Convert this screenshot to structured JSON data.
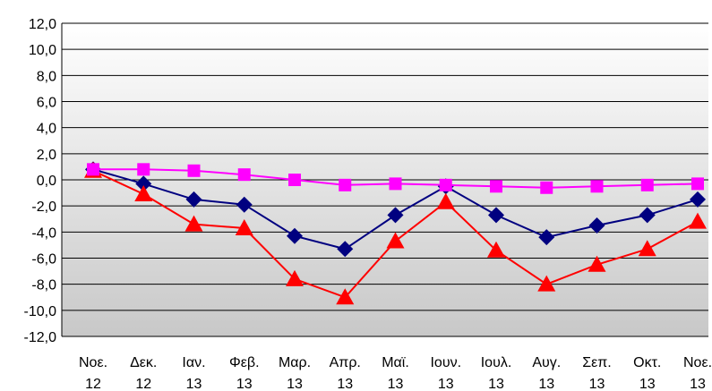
{
  "chart_data": {
    "type": "line",
    "categories": [
      [
        "Νοε.",
        "12"
      ],
      [
        "Δεκ.",
        "12"
      ],
      [
        "Ιαν.",
        "13"
      ],
      [
        "Φεβ.",
        "13"
      ],
      [
        "Μαρ.",
        "13"
      ],
      [
        "Απρ.",
        "13"
      ],
      [
        "Μαϊ.",
        "13"
      ],
      [
        "Ιουν.",
        "13"
      ],
      [
        "Ιουλ.",
        "13"
      ],
      [
        "Αυγ.",
        "13"
      ],
      [
        "Σεπ.",
        "13"
      ],
      [
        "Οκτ.",
        "13"
      ],
      [
        "Νοε.",
        "13"
      ]
    ],
    "y_ticks": [
      "12,0",
      "10,0",
      "8,0",
      "6,0",
      "4,0",
      "2,0",
      "0,0",
      "-2,0",
      "-4,0",
      "-6,0",
      "-8,0",
      "-10,0",
      "-12,0"
    ],
    "ylim": [
      -12,
      12
    ],
    "y_step": 2,
    "grid": true,
    "legend": "none",
    "series": [
      {
        "marker": "diamond",
        "color": "#000080",
        "values": [
          0.8,
          -0.3,
          -1.5,
          -1.9,
          -4.3,
          -5.3,
          -2.7,
          -0.5,
          -2.7,
          -4.4,
          -3.5,
          -2.7,
          -1.5
        ]
      },
      {
        "marker": "triangle",
        "color": "#ff0000",
        "values": [
          0.7,
          -1.1,
          -3.4,
          -3.7,
          -7.6,
          -9.0,
          -4.7,
          -1.7,
          -5.4,
          -8.0,
          -6.5,
          -5.3,
          -3.2
        ]
      },
      {
        "marker": "square",
        "color": "#ff00ff",
        "values": [
          0.8,
          0.8,
          0.7,
          0.4,
          0.0,
          -0.4,
          -0.3,
          -0.4,
          -0.5,
          -0.6,
          -0.5,
          -0.4,
          -0.3
        ]
      }
    ]
  },
  "colors": {
    "plot_gradient_top": "#ffffff",
    "plot_gradient_bottom": "#c8c8c8",
    "grid": "#000000",
    "axis": "#000000"
  }
}
